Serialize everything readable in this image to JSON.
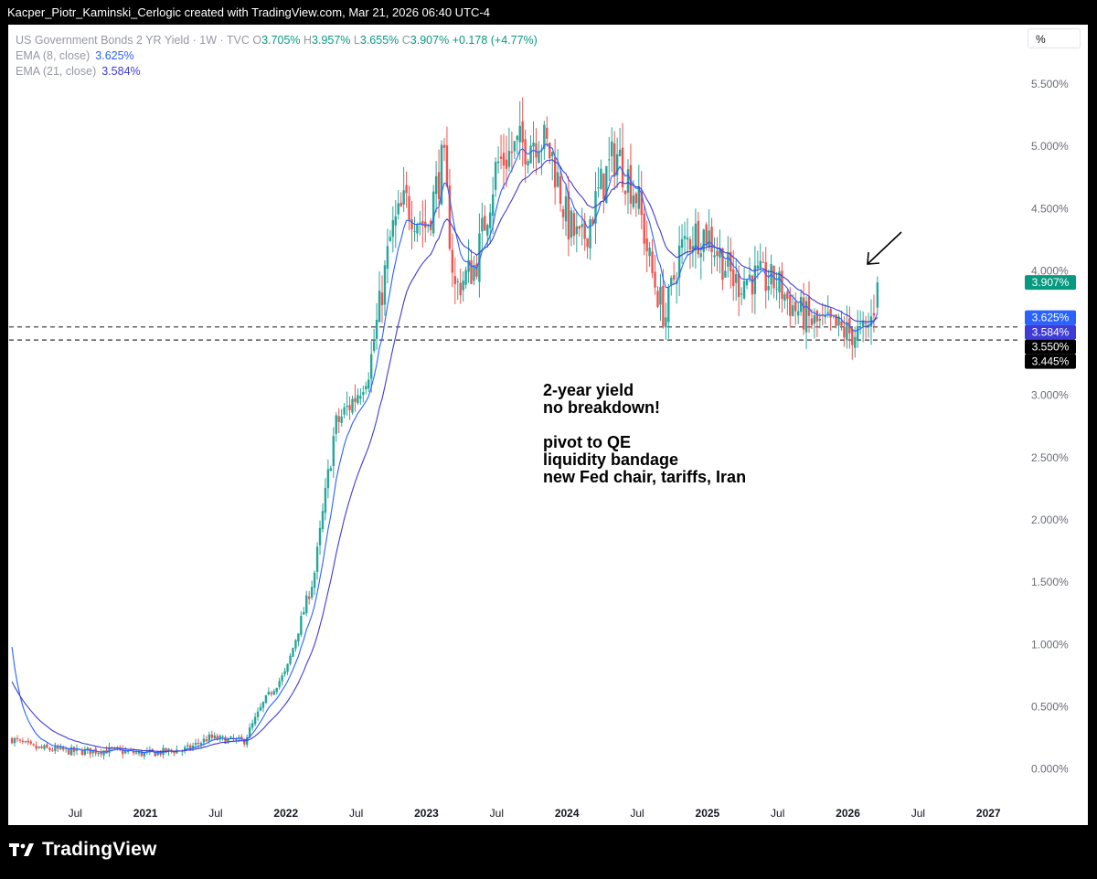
{
  "header": {
    "attribution": "Kacper_Piotr_Kaminski_Cerlogic created with TradingView.com, Mar 21, 2026 06:40 UTC-4"
  },
  "legend": {
    "symbol": "US Government Bonds 2 YR Yield · 1W · TVC",
    "o_label": "O",
    "o": "3.705%",
    "h_label": "H",
    "h": "3.957%",
    "l_label": "L",
    "l": "3.655%",
    "c_label": "C",
    "c": "3.907%",
    "change": "+0.178 (+4.77%)",
    "ema8_label": "EMA (8, close)",
    "ema8_value": "3.625%",
    "ema21_label": "EMA (21, close)",
    "ema21_value": "3.584%"
  },
  "scale_button": "%",
  "annotation": {
    "lines": [
      "2-year yield",
      "no breakdown!",
      "",
      "pivot to QE",
      "liquidity bandage",
      "new Fed chair, tariffs, Iran"
    ]
  },
  "price_tags": [
    {
      "text": "3.907%",
      "value": 3.907,
      "color": "#089981"
    },
    {
      "text": "3.625%",
      "value": 3.625,
      "color": "#2962ff"
    },
    {
      "text": "3.584%",
      "value": 3.584,
      "color": "#3f3bd6"
    },
    {
      "text": "3.550%",
      "value": 3.55,
      "color": "#000000"
    },
    {
      "text": "3.445%",
      "value": 3.445,
      "color": "#000000"
    }
  ],
  "footer": {
    "brand": "TradingView"
  },
  "chart_data": {
    "type": "candlestick",
    "title": "US Government Bonds 2 YR Yield · 1W · TVC",
    "ylim": [
      -0.15,
      5.75
    ],
    "y_ticks": [
      "0.000%",
      "0.500%",
      "1.000%",
      "1.500%",
      "2.000%",
      "2.500%",
      "3.000%",
      "3.500%",
      "4.000%",
      "4.500%",
      "5.000%",
      "5.500%"
    ],
    "y_tick_values": [
      0,
      0.5,
      1,
      1.5,
      2,
      2.5,
      3,
      3.5,
      4,
      4.5,
      5,
      5.5
    ],
    "x_ticks": [
      {
        "label": "Jul",
        "t": 2020.5
      },
      {
        "label": "2021",
        "t": 2021.0
      },
      {
        "label": "Jul",
        "t": 2021.5
      },
      {
        "label": "2022",
        "t": 2022.0
      },
      {
        "label": "Jul",
        "t": 2022.5
      },
      {
        "label": "2023",
        "t": 2023.0
      },
      {
        "label": "Jul",
        "t": 2023.5
      },
      {
        "label": "2024",
        "t": 2024.0
      },
      {
        "label": "Jul",
        "t": 2024.5
      },
      {
        "label": "2025",
        "t": 2025.0
      },
      {
        "label": "Jul",
        "t": 2025.5
      },
      {
        "label": "2026",
        "t": 2026.0
      },
      {
        "label": "Jul",
        "t": 2026.5
      },
      {
        "label": "2027",
        "t": 2027.0
      }
    ],
    "horizontal_levels": [
      3.55,
      3.445
    ],
    "close_path": [
      [
        2020.05,
        0.24
      ],
      [
        2020.2,
        0.17
      ],
      [
        2020.5,
        0.14
      ],
      [
        2020.75,
        0.15
      ],
      [
        2021.0,
        0.12
      ],
      [
        2021.3,
        0.16
      ],
      [
        2021.45,
        0.25
      ],
      [
        2021.7,
        0.22
      ],
      [
        2021.85,
        0.55
      ],
      [
        2022.0,
        0.78
      ],
      [
        2022.2,
        1.55
      ],
      [
        2022.35,
        2.75
      ],
      [
        2022.5,
        3.0
      ],
      [
        2022.6,
        3.25
      ],
      [
        2022.75,
        4.3
      ],
      [
        2022.85,
        4.55
      ],
      [
        2023.0,
        4.35
      ],
      [
        2023.12,
        4.9
      ],
      [
        2023.2,
        3.85
      ],
      [
        2023.35,
        4.05
      ],
      [
        2023.5,
        4.85
      ],
      [
        2023.6,
        4.95
      ],
      [
        2023.8,
        5.1
      ],
      [
        2023.9,
        4.9
      ],
      [
        2024.0,
        4.4
      ],
      [
        2024.1,
        4.2
      ],
      [
        2024.25,
        4.7
      ],
      [
        2024.35,
        4.95
      ],
      [
        2024.5,
        4.6
      ],
      [
        2024.6,
        4.0
      ],
      [
        2024.7,
        3.62
      ],
      [
        2024.8,
        4.15
      ],
      [
        2024.9,
        4.3
      ],
      [
        2025.0,
        4.3
      ],
      [
        2025.1,
        4.1
      ],
      [
        2025.2,
        3.9
      ],
      [
        2025.3,
        3.95
      ],
      [
        2025.5,
        3.9
      ],
      [
        2025.6,
        3.72
      ],
      [
        2025.75,
        3.58
      ],
      [
        2025.9,
        3.55
      ],
      [
        2026.0,
        3.5
      ],
      [
        2026.12,
        3.5
      ],
      [
        2026.17,
        3.62
      ],
      [
        2026.21,
        3.907
      ]
    ],
    "series": [
      {
        "name": "US Government Bonds 2 YR Yield",
        "color_up": "#26a69a",
        "color_down": "#ef5350"
      },
      {
        "name": "EMA (8, close)",
        "color": "#2962ff",
        "last": 3.625
      },
      {
        "name": "EMA (21, close)",
        "color": "#3f3bd6",
        "last": 3.584
      }
    ],
    "last_candle": {
      "open": 3.705,
      "high": 3.957,
      "low": 3.655,
      "close": 3.907
    }
  }
}
